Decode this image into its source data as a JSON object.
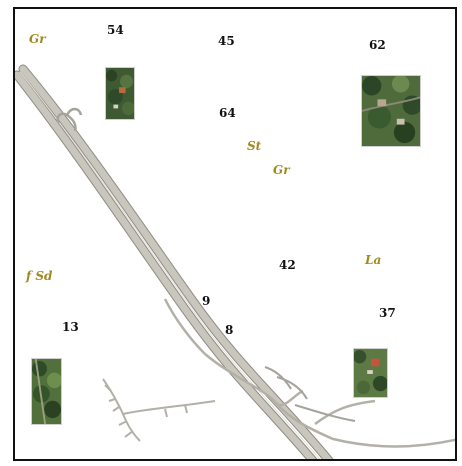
{
  "map": {
    "labels": {
      "n54": "54",
      "n45": "45",
      "n62": "62",
      "n64": "64",
      "n42": "42",
      "n9": "9",
      "n8": "8",
      "n13": "13",
      "n37": "37"
    },
    "place_names": {
      "gr_top_left": "Gr",
      "st": "St",
      "gr_center": "Gr",
      "f_sd": "f Sd",
      "la": "La"
    },
    "colors": {
      "place_label": "#a08a1e",
      "number_label": "#111111",
      "road_fill": "#c9c6bd",
      "road_edge": "#8f8c84",
      "frame": "#111111"
    },
    "photos": [
      "aerial-photo-1",
      "aerial-photo-2",
      "aerial-photo-3",
      "aerial-photo-4"
    ]
  }
}
